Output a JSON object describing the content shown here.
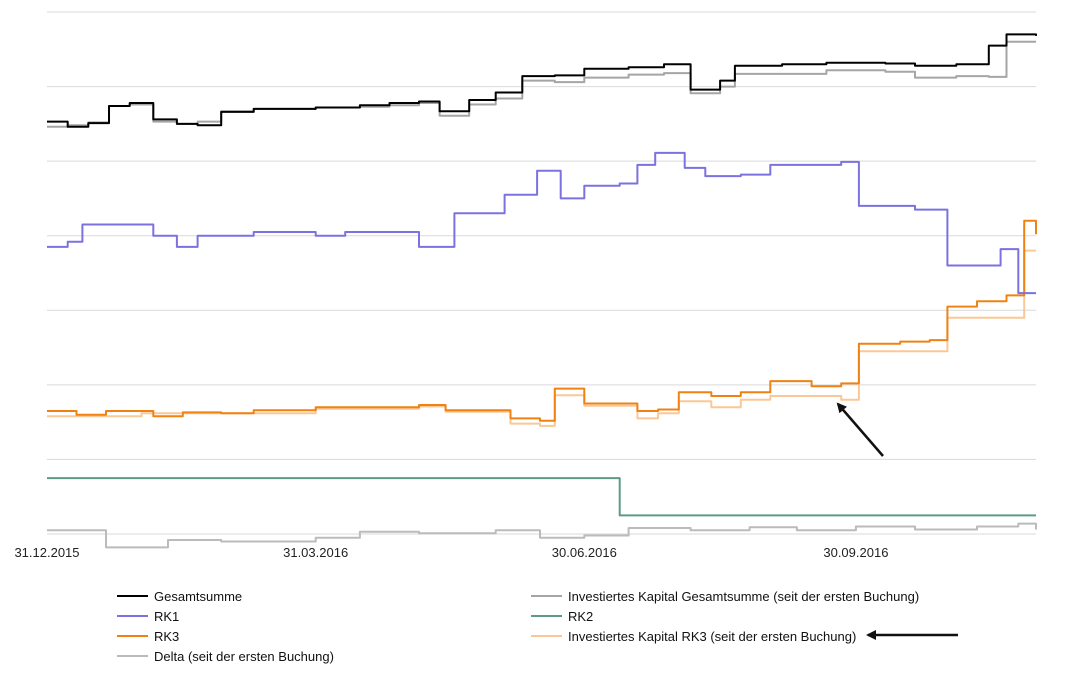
{
  "chart_data": {
    "type": "line",
    "title": "",
    "xlabel": "",
    "ylabel": "",
    "grid": "horizontal",
    "legend_position": "bottom",
    "x_ticks": [
      "31.12.2015",
      "31.03.2016",
      "30.06.2016",
      "30.09.2016"
    ],
    "x_range": [
      "31.12.2015",
      "30.11.2016"
    ],
    "y_range": [
      0,
      7
    ],
    "y_tick_labels_shown": false,
    "series": [
      {
        "name": "Gesamtsumme",
        "color": "#000000",
        "points": [
          [
            "31.12.2015",
            5.53
          ],
          [
            "07.01.2016",
            5.46
          ],
          [
            "14.01.2016",
            5.51
          ],
          [
            "21.01.2016",
            5.74
          ],
          [
            "28.01.2016",
            5.78
          ],
          [
            "05.02.2016",
            5.56
          ],
          [
            "13.02.2016",
            5.5
          ],
          [
            "20.02.2016",
            5.48
          ],
          [
            "28.02.2016",
            5.66
          ],
          [
            "10.03.2016",
            5.7
          ],
          [
            "31.03.2016",
            5.72
          ],
          [
            "15.04.2016",
            5.75
          ],
          [
            "25.04.2016",
            5.78
          ],
          [
            "05.05.2016",
            5.8
          ],
          [
            "12.05.2016",
            5.67
          ],
          [
            "22.05.2016",
            5.82
          ],
          [
            "31.05.2016",
            5.92
          ],
          [
            "09.06.2016",
            6.14
          ],
          [
            "20.06.2016",
            6.15
          ],
          [
            "30.06.2016",
            6.24
          ],
          [
            "15.07.2016",
            6.26
          ],
          [
            "27.07.2016",
            6.3
          ],
          [
            "05.08.2016",
            5.96
          ],
          [
            "15.08.2016",
            6.08
          ],
          [
            "20.08.2016",
            6.28
          ],
          [
            "05.09.2016",
            6.3
          ],
          [
            "20.09.2016",
            6.32
          ],
          [
            "10.10.2016",
            6.31
          ],
          [
            "20.10.2016",
            6.28
          ],
          [
            "03.11.2016",
            6.3
          ],
          [
            "14.11.2016",
            6.55
          ],
          [
            "20.11.2016",
            6.7
          ],
          [
            "30.11.2016",
            6.68
          ]
        ]
      },
      {
        "name": "Investiertes Kapital Gesamtsumme (seit der ersten Buchung)",
        "color": "#a5a5a5",
        "points": [
          [
            "31.12.2015",
            5.46
          ],
          [
            "07.01.2016",
            5.48
          ],
          [
            "14.01.2016",
            5.52
          ],
          [
            "21.01.2016",
            5.74
          ],
          [
            "28.01.2016",
            5.76
          ],
          [
            "05.02.2016",
            5.53
          ],
          [
            "13.02.2016",
            5.5
          ],
          [
            "20.02.2016",
            5.53
          ],
          [
            "28.02.2016",
            5.67
          ],
          [
            "10.03.2016",
            5.7
          ],
          [
            "31.03.2016",
            5.72
          ],
          [
            "15.04.2016",
            5.73
          ],
          [
            "25.04.2016",
            5.75
          ],
          [
            "05.05.2016",
            5.78
          ],
          [
            "12.05.2016",
            5.61
          ],
          [
            "22.05.2016",
            5.76
          ],
          [
            "31.05.2016",
            5.84
          ],
          [
            "09.06.2016",
            6.08
          ],
          [
            "20.06.2016",
            6.06
          ],
          [
            "30.06.2016",
            6.12
          ],
          [
            "15.07.2016",
            6.16
          ],
          [
            "27.07.2016",
            6.18
          ],
          [
            "05.08.2016",
            5.91
          ],
          [
            "15.08.2016",
            6.0
          ],
          [
            "20.08.2016",
            6.17
          ],
          [
            "05.09.2016",
            6.17
          ],
          [
            "20.09.2016",
            6.22
          ],
          [
            "10.10.2016",
            6.2
          ],
          [
            "20.10.2016",
            6.12
          ],
          [
            "03.11.2016",
            6.14
          ],
          [
            "14.11.2016",
            6.13
          ],
          [
            "20.11.2016",
            6.6
          ],
          [
            "30.11.2016",
            6.6
          ]
        ]
      },
      {
        "name": "RK1",
        "color": "#7b72e0",
        "points": [
          [
            "31.12.2015",
            3.85
          ],
          [
            "07.01.2016",
            3.92
          ],
          [
            "12.01.2016",
            4.15
          ],
          [
            "28.01.2016",
            4.15
          ],
          [
            "05.02.2016",
            4.0
          ],
          [
            "13.02.2016",
            3.85
          ],
          [
            "20.02.2016",
            4.0
          ],
          [
            "10.03.2016",
            4.05
          ],
          [
            "31.03.2016",
            4.0
          ],
          [
            "10.04.2016",
            4.05
          ],
          [
            "30.04.2016",
            4.05
          ],
          [
            "05.05.2016",
            3.85
          ],
          [
            "12.05.2016",
            3.85
          ],
          [
            "17.05.2016",
            4.3
          ],
          [
            "25.05.2016",
            4.3
          ],
          [
            "03.06.2016",
            4.55
          ],
          [
            "14.06.2016",
            4.87
          ],
          [
            "22.06.2016",
            4.5
          ],
          [
            "30.06.2016",
            4.67
          ],
          [
            "12.07.2016",
            4.7
          ],
          [
            "18.07.2016",
            4.95
          ],
          [
            "24.07.2016",
            5.11
          ],
          [
            "03.08.2016",
            4.91
          ],
          [
            "10.08.2016",
            4.8
          ],
          [
            "22.08.2016",
            4.82
          ],
          [
            "01.09.2016",
            4.95
          ],
          [
            "25.09.2016",
            4.99
          ],
          [
            "01.10.2016",
            4.4
          ],
          [
            "20.10.2016",
            4.35
          ],
          [
            "26.10.2016",
            4.35
          ],
          [
            "31.10.2016",
            3.6
          ],
          [
            "10.11.2016",
            3.6
          ],
          [
            "18.11.2016",
            3.82
          ],
          [
            "24.11.2016",
            3.23
          ],
          [
            "30.11.2016",
            3.23
          ]
        ]
      },
      {
        "name": "RK2",
        "color": "#5f9a87",
        "points": [
          [
            "31.12.2015",
            0.75
          ],
          [
            "11.07.2016",
            0.75
          ],
          [
            "12.07.2016",
            0.25
          ],
          [
            "30.11.2016",
            0.25
          ]
        ]
      },
      {
        "name": "RK3",
        "color": "#f08214",
        "points": [
          [
            "31.12.2015",
            1.65
          ],
          [
            "10.01.2016",
            1.6
          ],
          [
            "20.01.2016",
            1.65
          ],
          [
            "05.02.2016",
            1.58
          ],
          [
            "15.02.2016",
            1.63
          ],
          [
            "28.02.2016",
            1.62
          ],
          [
            "10.03.2016",
            1.66
          ],
          [
            "31.03.2016",
            1.7
          ],
          [
            "15.04.2016",
            1.7
          ],
          [
            "05.05.2016",
            1.73
          ],
          [
            "14.05.2016",
            1.66
          ],
          [
            "25.05.2016",
            1.66
          ],
          [
            "05.06.2016",
            1.55
          ],
          [
            "15.06.2016",
            1.52
          ],
          [
            "20.06.2016",
            1.95
          ],
          [
            "30.06.2016",
            1.75
          ],
          [
            "12.07.2016",
            1.75
          ],
          [
            "18.07.2016",
            1.65
          ],
          [
            "25.07.2016",
            1.67
          ],
          [
            "01.08.2016",
            1.9
          ],
          [
            "12.08.2016",
            1.85
          ],
          [
            "22.08.2016",
            1.9
          ],
          [
            "01.09.2016",
            2.05
          ],
          [
            "15.09.2016",
            1.98
          ],
          [
            "25.09.2016",
            2.02
          ],
          [
            "01.10.2016",
            2.55
          ],
          [
            "15.10.2016",
            2.58
          ],
          [
            "25.10.2016",
            2.6
          ],
          [
            "31.10.2016",
            3.05
          ],
          [
            "10.11.2016",
            3.12
          ],
          [
            "20.11.2016",
            3.2
          ],
          [
            "26.11.2016",
            4.2
          ],
          [
            "30.11.2016",
            4.02
          ]
        ]
      },
      {
        "name": "Investiertes Kapital RK3 (seit der ersten Buchung)",
        "color": "#fac896",
        "points": [
          [
            "31.12.2015",
            1.58
          ],
          [
            "15.01.2016",
            1.58
          ],
          [
            "01.02.2016",
            1.62
          ],
          [
            "31.03.2016",
            1.68
          ],
          [
            "05.05.2016",
            1.71
          ],
          [
            "14.05.2016",
            1.64
          ],
          [
            "25.05.2016",
            1.64
          ],
          [
            "05.06.2016",
            1.48
          ],
          [
            "15.06.2016",
            1.45
          ],
          [
            "20.06.2016",
            1.86
          ],
          [
            "30.06.2016",
            1.72
          ],
          [
            "12.07.2016",
            1.72
          ],
          [
            "18.07.2016",
            1.55
          ],
          [
            "25.07.2016",
            1.62
          ],
          [
            "01.08.2016",
            1.78
          ],
          [
            "12.08.2016",
            1.7
          ],
          [
            "22.08.2016",
            1.8
          ],
          [
            "01.09.2016",
            1.85
          ],
          [
            "25.09.2016",
            1.8
          ],
          [
            "01.10.2016",
            2.45
          ],
          [
            "25.10.2016",
            2.45
          ],
          [
            "31.10.2016",
            2.9
          ],
          [
            "20.11.2016",
            2.9
          ],
          [
            "26.11.2016",
            3.8
          ],
          [
            "30.11.2016",
            3.8
          ]
        ]
      },
      {
        "name": "Delta (seit der ersten Buchung)",
        "color": "#bbbbbb",
        "points": [
          [
            "31.12.2015",
            0.05
          ],
          [
            "20.01.2016",
            -0.18
          ],
          [
            "10.02.2016",
            -0.08
          ],
          [
            "28.02.2016",
            -0.1
          ],
          [
            "31.03.2016",
            -0.05
          ],
          [
            "15.04.2016",
            0.03
          ],
          [
            "05.05.2016",
            0.01
          ],
          [
            "31.05.2016",
            0.05
          ],
          [
            "15.06.2016",
            -0.05
          ],
          [
            "30.06.2016",
            -0.02
          ],
          [
            "15.07.2016",
            0.08
          ],
          [
            "05.08.2016",
            0.05
          ],
          [
            "25.08.2016",
            0.09
          ],
          [
            "10.09.2016",
            0.05
          ],
          [
            "30.09.2016",
            0.1
          ],
          [
            "20.10.2016",
            0.06
          ],
          [
            "10.11.2016",
            0.1
          ],
          [
            "24.11.2016",
            0.14
          ],
          [
            "30.11.2016",
            0.06
          ]
        ]
      }
    ],
    "legend": [
      {
        "label": "Gesamtsumme",
        "color": "#000000"
      },
      {
        "label": "Investiertes Kapital Gesamtsumme (seit der ersten Buchung)",
        "color": "#a5a5a5"
      },
      {
        "label": "RK1",
        "color": "#7b72e0"
      },
      {
        "label": "RK2",
        "color": "#5f9a87"
      },
      {
        "label": "RK3",
        "color": "#f08214"
      },
      {
        "label": "Investiertes Kapital RK3 (seit der ersten Buchung)",
        "color": "#fac896"
      },
      {
        "label": "Delta (seit der ersten Buchung)",
        "color": "#bbbbbb"
      }
    ],
    "annotations": [
      {
        "type": "arrow",
        "target": "Investiertes Kapital RK3 (seit der ersten Buchung)",
        "placement": "plot"
      },
      {
        "type": "arrow",
        "target": "Investiertes Kapital RK3 (seit der ersten Buchung)",
        "placement": "legend"
      }
    ],
    "arrow_color": "#111111"
  }
}
